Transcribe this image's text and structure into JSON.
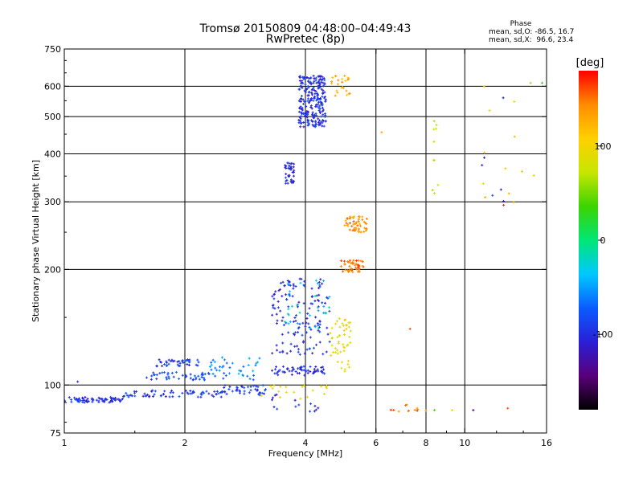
{
  "chart_data": {
    "type": "scatter",
    "title": "Tromsø 20150809 04:48:00–04:49:43",
    "subtitle": "RwPretec (8p)",
    "xlabel": "Frequency [MHz]",
    "ylabel": "Stationary phase Virtual Height [km]",
    "x_scale": "log",
    "y_scale": "log",
    "xlim": [
      1,
      16
    ],
    "ylim": [
      75,
      750
    ],
    "x_ticks": [
      1,
      2,
      4,
      6,
      8,
      10,
      16
    ],
    "x_tick_labels": [
      "1",
      "2",
      "4",
      "6",
      "8",
      "10",
      "16"
    ],
    "y_ticks": [
      75,
      100,
      200,
      300,
      400,
      500,
      600,
      750
    ],
    "y_tick_labels": [
      "75",
      "100",
      "200",
      "300",
      "400",
      "500",
      "600",
      "750"
    ],
    "x_gridlines": [
      2,
      4,
      6,
      8,
      10
    ],
    "y_gridlines": [
      100,
      200,
      300,
      400,
      500,
      600
    ],
    "grid": true,
    "phase_stats": {
      "heading": "Phase",
      "line_o": "mean, sd,O: -86.5, 16.7",
      "line_x": "mean, sd,X:  96.6, 23.4"
    },
    "colorbar": {
      "label": "[deg]",
      "range": [
        -180,
        180
      ],
      "ticks": [
        100,
        0,
        -100
      ],
      "tick_labels": [
        "100",
        "0",
        "-100"
      ],
      "colormap": [
        "#000000",
        "#5a007a",
        "#2a1fd6",
        "#0a5cff",
        "#00c8ff",
        "#00e676",
        "#3cd400",
        "#c8e600",
        "#ffd000",
        "#ff8c00",
        "#ff0000"
      ]
    },
    "clusters": [
      {
        "name": "",
        "phase": -100,
        "x": [
          1.0,
          1.4
        ],
        "y": [
          90,
          93
        ],
        "n": 70
      },
      {
        "name": "",
        "phase": -95,
        "x": [
          1.4,
          2.5
        ],
        "y": [
          93,
          97
        ],
        "n": 70
      },
      {
        "name": "",
        "phase": -90,
        "x": [
          2.5,
          3.2
        ],
        "y": [
          94,
          100
        ],
        "n": 40
      },
      {
        "name": "",
        "phase": -85,
        "x": [
          1.6,
          2.3
        ],
        "y": [
          103,
          108
        ],
        "n": 45
      },
      {
        "name": "",
        "phase": -90,
        "x": [
          1.7,
          2.2
        ],
        "y": [
          112,
          117
        ],
        "n": 40
      },
      {
        "name": "",
        "phase": -60,
        "x": [
          2.3,
          3.1
        ],
        "y": [
          103,
          118
        ],
        "n": 40
      },
      {
        "name": "",
        "phase": -100,
        "x": [
          3.3,
          4.5
        ],
        "y": [
          106,
          112
        ],
        "n": 60
      },
      {
        "name": "",
        "phase": -100,
        "x": [
          3.3,
          4.6
        ],
        "y": [
          120,
          190
        ],
        "n": 140
      },
      {
        "name": "",
        "phase": -30,
        "x": [
          3.5,
          4.6
        ],
        "y": [
          140,
          190
        ],
        "n": 30
      },
      {
        "name": "",
        "phase": -100,
        "x": [
          3.55,
          3.75
        ],
        "y": [
          335,
          380
        ],
        "n": 40
      },
      {
        "name": "",
        "phase": -100,
        "x": [
          3.85,
          4.5
        ],
        "y": [
          470,
          640
        ],
        "n": 240
      },
      {
        "name": "",
        "phase": 130,
        "x": [
          4.6,
          5.2
        ],
        "y": [
          560,
          640
        ],
        "n": 25
      },
      {
        "name": "",
        "phase": 95,
        "x": [
          4.6,
          5.2
        ],
        "y": [
          108,
          150
        ],
        "n": 50
      },
      {
        "name": "",
        "phase": 95,
        "x": [
          3.1,
          4.6
        ],
        "y": [
          92,
          100
        ],
        "n": 20
      },
      {
        "name": "",
        "phase": 140,
        "x": [
          5.0,
          5.7
        ],
        "y": [
          250,
          275
        ],
        "n": 55
      },
      {
        "name": "",
        "phase": 150,
        "x": [
          4.9,
          5.6
        ],
        "y": [
          196,
          212
        ],
        "n": 45
      },
      {
        "name": "",
        "phase": -100,
        "x": [
          3.3,
          4.4
        ],
        "y": [
          85,
          95
        ],
        "n": 15
      },
      {
        "name": "",
        "phase": 150,
        "x": [
          6.3,
          8.0
        ],
        "y": [
          85,
          89
        ],
        "n": 12
      },
      {
        "name": "",
        "phase": 60,
        "x": [
          8.3,
          8.6
        ],
        "y": [
          295,
          500
        ],
        "n": 10
      },
      {
        "name": "",
        "phase": 110,
        "x": [
          10.5,
          15.5
        ],
        "y": [
          270,
          620
        ],
        "n": 12
      },
      {
        "name": "",
        "phase": -100,
        "x": [
          10.5,
          14.0
        ],
        "y": [
          300,
          610
        ],
        "n": 6
      }
    ],
    "points": [
      {
        "x": 1.08,
        "y": 102,
        "phase": -100
      },
      {
        "x": 6.2,
        "y": 455,
        "phase": 130
      },
      {
        "x": 7.3,
        "y": 140,
        "phase": 160
      },
      {
        "x": 8.4,
        "y": 86,
        "phase": 40
      },
      {
        "x": 9.3,
        "y": 86,
        "phase": 90
      },
      {
        "x": 10.5,
        "y": 86,
        "phase": -140
      },
      {
        "x": 12.8,
        "y": 87,
        "phase": 160
      },
      {
        "x": 12.5,
        "y": 294,
        "phase": 170
      },
      {
        "x": 14.6,
        "y": 612,
        "phase": 60
      },
      {
        "x": 15.6,
        "y": 612,
        "phase": 30
      }
    ]
  }
}
